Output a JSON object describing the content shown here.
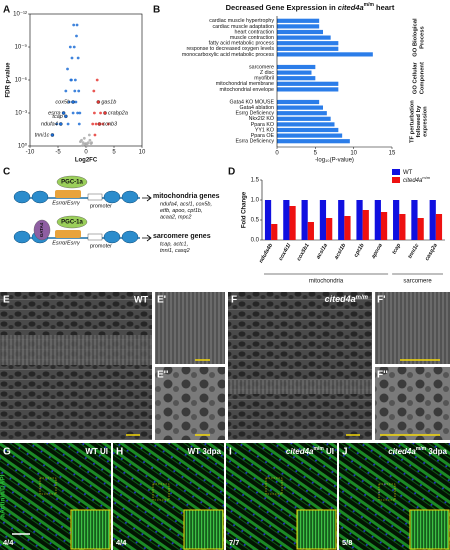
{
  "panel_labels": [
    "A",
    "B",
    "C",
    "D",
    "E",
    "E'",
    "E''",
    "F",
    "F'",
    "F''",
    "G",
    "H",
    "I",
    "J"
  ],
  "chart_data": [
    {
      "type": "scatter",
      "x_label": "Log2FC",
      "y_label": "FDR p-value",
      "log_y": true,
      "xlim": [
        -10,
        10
      ],
      "xticks": [
        -10,
        -5,
        0,
        5,
        10
      ],
      "ylim": [
        1,
        1e-12
      ],
      "yticks": [
        {
          "value": 1e-12,
          "label": "10⁻¹²"
        },
        {
          "value": 1e-09,
          "label": "10⁻⁹"
        },
        {
          "value": 1e-06,
          "label": "10⁻⁶"
        },
        {
          "value": 0.001,
          "label": "10⁻³"
        },
        {
          "value": 1,
          "label": "10⁰"
        }
      ],
      "series": [
        {
          "name": "down",
          "color": "#1f6fd6",
          "x": [
            -1.2,
            -1.5,
            -1.8,
            -2.0,
            -2.3,
            -2.6,
            -3.0,
            -3.3,
            -1.4,
            -1.7,
            -2.2,
            -2.8,
            -3.6,
            -4.0,
            -4.5,
            -1.3,
            -1.9,
            -2.5,
            -3.2,
            -1.6,
            -2.1,
            -2.7,
            -5.2,
            -6.0,
            -1.1,
            -2.4
          ],
          "values": [
            0.01,
            0.001,
            0.0001,
            1e-05,
            0.001,
            1e-06,
            0.0001,
            1e-07,
            1e-08,
            1e-10,
            1e-11,
            1e-09,
            1e-05,
            0.001,
            0.01,
            1e-05,
            1e-06,
            1e-08,
            0.01,
            1e-11,
            1e-09,
            1e-06,
            0.01,
            0.1,
            0.001,
            0.0001
          ]
        },
        {
          "name": "up",
          "color": "#e53935",
          "x": [
            1.2,
            1.5,
            1.8,
            2.2,
            2.6,
            3.0,
            1.4,
            2.0,
            3.4,
            1.6,
            4.0,
            2.4
          ],
          "values": [
            0.01,
            0.001,
            0.01,
            0.0001,
            0.001,
            0.01,
            1e-05,
            1e-06,
            0.001,
            0.1,
            0.01,
            0.01
          ]
        },
        {
          "name": "ns",
          "color": "#aaaaaa",
          "x": [
            -0.8,
            -0.5,
            -0.2,
            0.1,
            0.4,
            0.7,
            -0.6,
            0.3,
            0.9,
            -0.3,
            0.0,
            0.6,
            -1.0,
            1.0
          ],
          "values": [
            0.3,
            0.5,
            0.7,
            0.8,
            0.5,
            0.3,
            0.9,
            0.95,
            0.6,
            0.2,
            0.6,
            0.1,
            0.4,
            0.5
          ]
        }
      ],
      "annotations": [
        {
          "text": "cox5b",
          "x": -2.3,
          "value": 0.0001
        },
        {
          "text": "esrra",
          "x": -4.0,
          "value": 0.001
        },
        {
          "text": "ndufa4",
          "x": -4.5,
          "value": 0.01
        },
        {
          "text": "tcap",
          "x": -3.6,
          "value": 0.002
        },
        {
          "text": "tnni1c",
          "x": -6.0,
          "value": 0.1
        },
        {
          "text": "gas1b",
          "x": 2.2,
          "value": 0.0001
        },
        {
          "text": "crabp2a",
          "x": 3.4,
          "value": 0.001
        },
        {
          "text": "ccnb3",
          "x": 2.4,
          "value": 0.01
        }
      ]
    },
    {
      "type": "hbar",
      "title": "Decreased Gene Expression in ",
      "title_gene": "cited4a",
      "title_sup": "m/m",
      "title_end": " heart",
      "x_label": "-log₁₀(P-value)",
      "color": "#2b7de9",
      "xlim": [
        0,
        15
      ],
      "xticks": [
        0,
        5,
        10,
        15
      ],
      "groups": [
        {
          "name": [
            "GO Biological",
            "Process"
          ],
          "categories": [
            "cardiac muscle hypertrophy",
            "cardiac muscle adaptation",
            "heart contraction",
            "muscle contraction",
            "fatty acid metabolic process",
            "response to decreased oxygen levels",
            "monocarboxylic acid metabolic process"
          ],
          "values": [
            5.5,
            5.5,
            6,
            7,
            8,
            8,
            12.5
          ]
        },
        {
          "name": [
            "GO Cellular",
            "Component"
          ],
          "categories": [
            "sarcomere",
            "Z disc",
            "myofibril",
            "mitochondrial membrane",
            "mitochondrial envelope"
          ],
          "values": [
            5,
            4.5,
            5,
            8,
            8
          ]
        },
        {
          "name": [
            "TF perturbation",
            "followed by",
            "expression"
          ],
          "categories": [
            "Gata4 KO MOUSE",
            "Gata4 ablation",
            "Esrrg Deficiency",
            "Nkx2l2 KO",
            "Ppara KO",
            "YY1 KO",
            "Ppara OE",
            "Esrra Deficiency"
          ],
          "values": [
            5.5,
            6,
            6.5,
            7,
            7.5,
            8,
            8.5,
            9.5
          ]
        }
      ]
    },
    {
      "type": "grouped_bar",
      "y_label": "Fold Change",
      "categories": [
        "ndufa4b",
        "cox4i1l",
        "cox5b1",
        "acsl1a",
        "acsl1b",
        "cpt1b",
        "apooa",
        "tcap",
        "tnni1c",
        "casq2a"
      ],
      "ylim": [
        0,
        1.5
      ],
      "yticks": [
        {
          "value": 0,
          "label": "0.0"
        },
        0.5,
        {
          "value": 1,
          "label": "1.0"
        },
        1.5
      ],
      "category_groups": [
        {
          "name": "mitochondria",
          "from": 0,
          "to": 6
        },
        {
          "name": "sarcomere",
          "from": 7,
          "to": 9
        }
      ],
      "legend": "top-right",
      "series": [
        {
          "name": "WT",
          "color": "#1010e0",
          "values": [
            1,
            1,
            1,
            1,
            1,
            1,
            1,
            1,
            1,
            1
          ]
        },
        {
          "name": "cited4a",
          "name_sup": "m/m",
          "color": "#ee1111",
          "values": [
            0.4,
            0.85,
            0.45,
            0.55,
            0.6,
            0.75,
            0.7,
            0.65,
            0.55,
            0.65
          ]
        }
      ]
    }
  ],
  "diagram": {
    "rows": [
      {
        "factors": [
          "PGC-1a"
        ],
        "receptor": "Esrrα/Esrrγ",
        "promoter": "promoter",
        "target": "mitochondria genes",
        "genes": [
          "ndufa4, acsl1, cox5b,",
          "etfb, apoo, cpt1b,",
          "acaa2, mpc2"
        ]
      },
      {
        "factors": [
          "PGC-1a",
          "GATA4"
        ],
        "receptor": "Esrrα/Esrrγ",
        "promoter": "promoter",
        "target": "sarcomere genes",
        "genes": [
          "tcap, actc1,",
          "tnni1, casq2"
        ]
      }
    ]
  },
  "images": {
    "em_wt": "WT",
    "em_mut": "cited4a",
    "em_mut_sup": "m/m",
    "stain": "aActinin/DAPI",
    "fluor": [
      {
        "title": "WT UI",
        "ratio": "4/4"
      },
      {
        "title": "WT 3dpa",
        "ratio": "4/4"
      },
      {
        "gene": "cited4a",
        "sup": "m/m",
        "title": " UI",
        "ratio": "7/7"
      },
      {
        "gene": "cited4a",
        "sup": "m/m",
        "title": " 3dpa",
        "ratio": "5/8"
      }
    ]
  }
}
